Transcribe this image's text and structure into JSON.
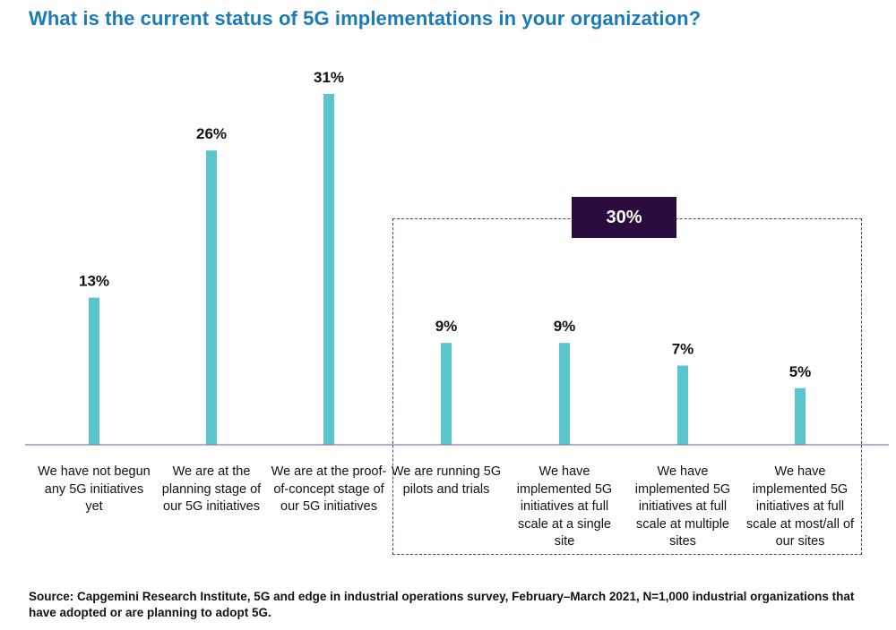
{
  "chart_data": {
    "type": "bar",
    "title": "What is the current status of 5G implementations in your organization?",
    "categories": [
      "We have not begun any 5G initiatives yet",
      "We are at the planning stage of our 5G initiatives",
      "We are at the proof-of-concept stage of our 5G initiatives",
      "We are running 5G pilots and trials",
      "We have implemented 5G initiatives at full scale at a single site",
      "We have implemented 5G initiatives at full scale at multiple sites",
      "We have implemented 5G initiatives at full scale at most/all of our sites"
    ],
    "values": [
      13,
      26,
      31,
      9,
      9,
      7,
      5
    ],
    "value_labels": [
      "13%",
      "26%",
      "31%",
      "9%",
      "9%",
      "7%",
      "5%"
    ],
    "unit": "%",
    "ylim": [
      0,
      31
    ],
    "xlabel": "",
    "ylabel": "",
    "group": {
      "label": "30%",
      "members": [
        "We are running 5G pilots and trials",
        "We have implemented 5G initiatives at full scale at a single site",
        "We have implemented 5G initiatives at full scale at multiple sites",
        "We have implemented 5G initiatives at full scale at most/all of our sites"
      ]
    },
    "source": "Source: Capgemini Research Institute, 5G and edge in industrial operations survey, February–March 2021, N=1,000 industrial organizations that have adopted or are planning to adopt 5G."
  },
  "colors": {
    "bar": "#5bc5cd",
    "axis": "#8a7aa8",
    "title": "#1b7ab8",
    "badge": "#2b0a3d",
    "box_border": "#5a3a6e"
  }
}
